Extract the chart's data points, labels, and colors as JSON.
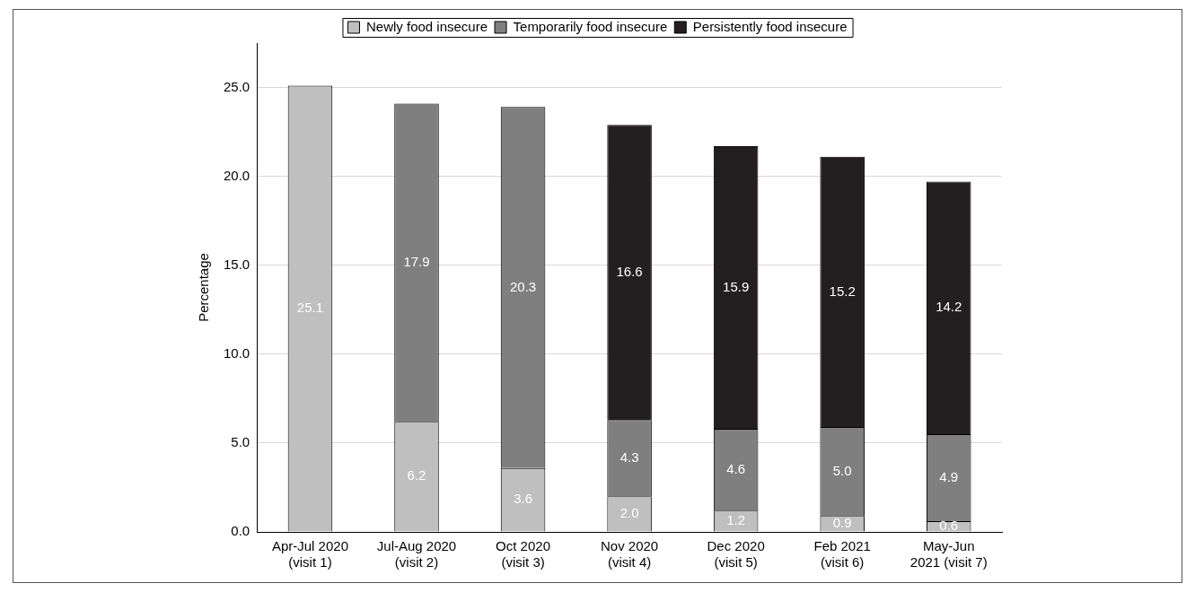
{
  "chart_data": {
    "type": "bar",
    "stacked": true,
    "ylabel": "Percentage",
    "categories": [
      "Apr-Jul 2020\n(visit 1)",
      "Jul-Aug 2020\n(visit 2)",
      "Oct 2020\n(visit 3)",
      "Nov 2020\n(visit 4)",
      "Dec 2020\n(visit 5)",
      "Feb 2021\n(visit 6)",
      "May-Jun\n2021 (visit 7)"
    ],
    "series": [
      {
        "name": "Newly food insecure",
        "color": "#bfbfbf",
        "values": [
          25.1,
          6.2,
          3.6,
          2.0,
          1.2,
          0.9,
          0.6
        ],
        "value_labels": [
          "25.1",
          "6.2",
          "3.6",
          "2.0",
          "1.2",
          "0.9",
          "0.6"
        ]
      },
      {
        "name": "Temporarily food insecure",
        "color": "#7f7f7f",
        "values": [
          null,
          17.9,
          20.3,
          4.3,
          4.6,
          5.0,
          4.9
        ],
        "value_labels": [
          null,
          "17.9",
          "20.3",
          "4.3",
          "4.6",
          "5.0",
          "4.9"
        ]
      },
      {
        "name": "Persistently food insecure",
        "color": "#231f20",
        "values": [
          null,
          null,
          null,
          16.6,
          15.9,
          15.2,
          14.2
        ],
        "value_labels": [
          null,
          null,
          null,
          "16.6",
          "15.9",
          "15.2",
          "14.2"
        ]
      }
    ],
    "ylim": [
      0,
      27.5
    ],
    "yticks": [
      {
        "value": 0,
        "label": "0.0"
      },
      {
        "value": 5,
        "label": "5.0"
      },
      {
        "value": 10,
        "label": "10.0"
      },
      {
        "value": 15,
        "label": "15.0"
      },
      {
        "value": 20,
        "label": "20.0"
      },
      {
        "value": 25,
        "label": "25.0"
      }
    ],
    "grid": "y",
    "legend": "top"
  }
}
